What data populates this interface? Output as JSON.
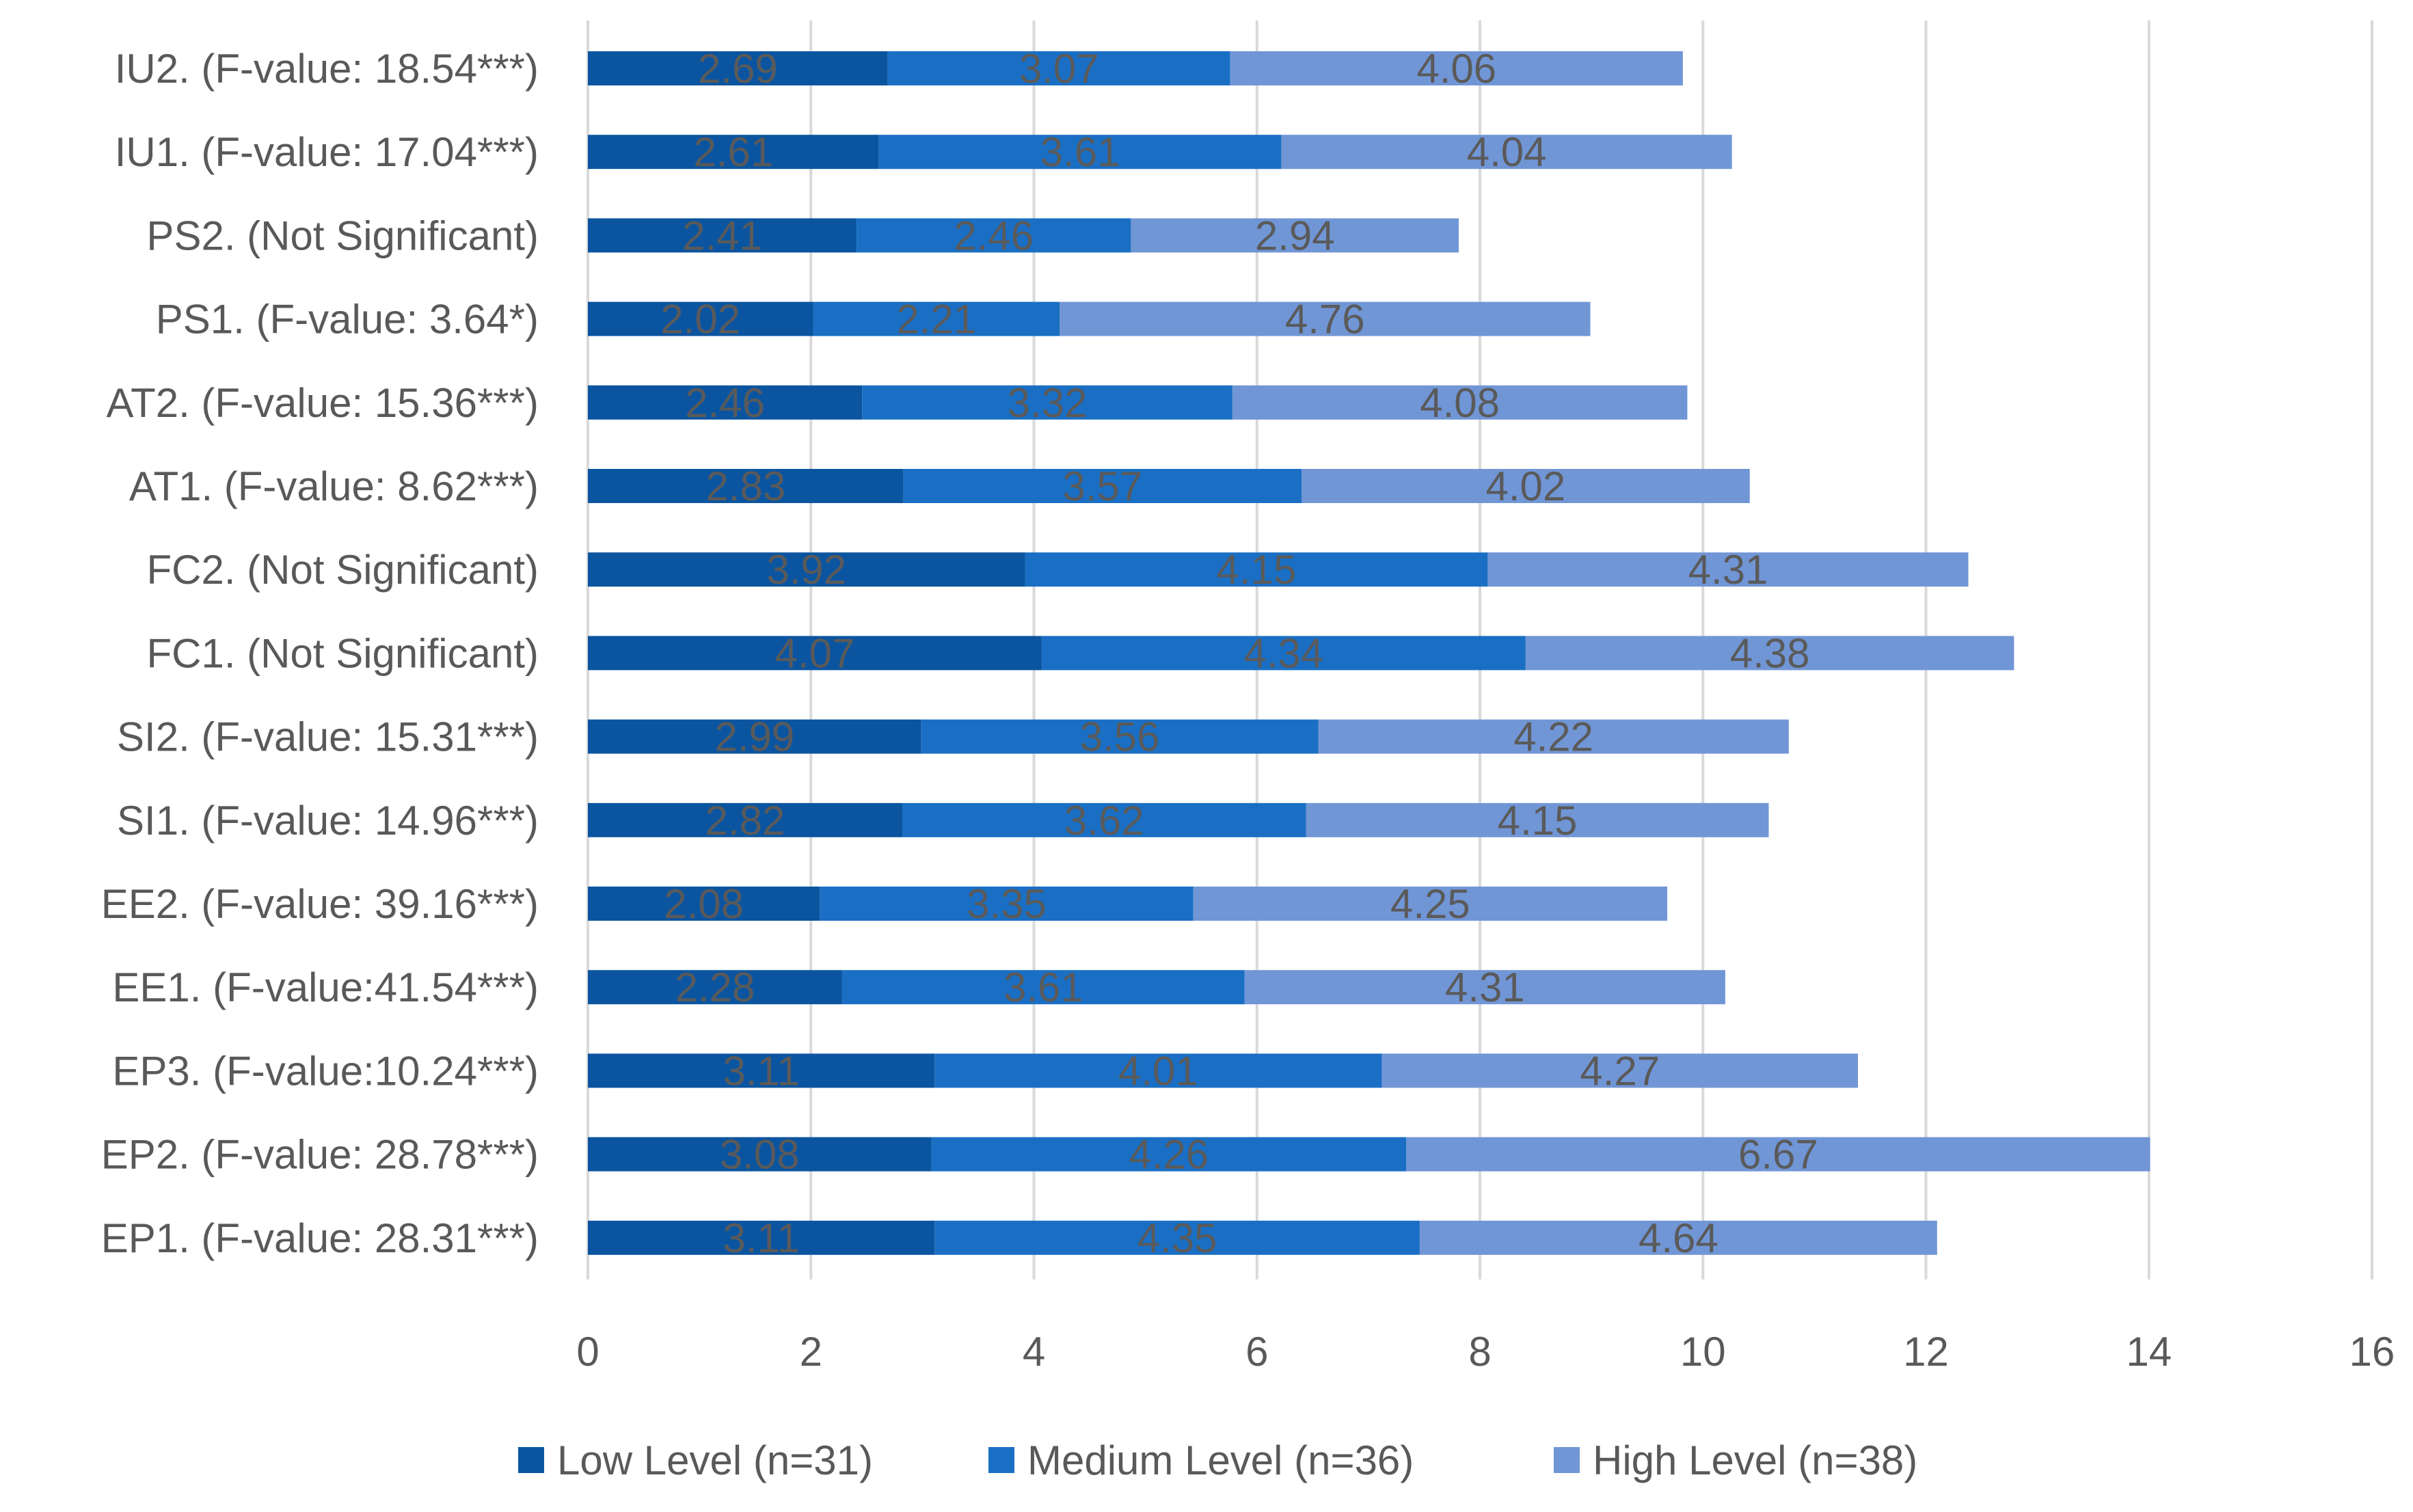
{
  "chart_data": {
    "type": "bar",
    "orientation": "horizontal",
    "stacked": true,
    "title": "",
    "xlabel": "",
    "ylabel": "",
    "xlim": [
      0,
      16
    ],
    "x_ticks": [
      0,
      2,
      4,
      6,
      8,
      10,
      12,
      14,
      16
    ],
    "x_tick_labels": [
      "0",
      "2",
      "4",
      "6",
      "8",
      "10",
      "12",
      "14",
      "16"
    ],
    "grid": "vertical",
    "legend_position": "bottom",
    "categories": [
      "IU2. (F-value: 18.54***)",
      "IU1. (F-value: 17.04***)",
      "PS2. (Not Significant)",
      "PS1. (F-value: 3.64*)",
      "AT2. (F-value: 15.36***)",
      "AT1. (F-value: 8.62***)",
      "FC2. (Not Significant)",
      "FC1. (Not Significant)",
      "SI2. (F-value: 15.31***)",
      "SI1. (F-value: 14.96***)",
      "EE2. (F-value: 39.16***)",
      "EE1. (F-value:41.54***)",
      "EP3. (F-value:10.24***)",
      "EP2. (F-value: 28.78***)",
      "EP1. (F-value: 28.31***)"
    ],
    "series": [
      {
        "name": "Low Level (n=31)",
        "color": "#0b55a0",
        "values": [
          2.69,
          2.61,
          2.41,
          2.02,
          2.46,
          2.83,
          3.92,
          4.07,
          2.99,
          2.82,
          2.08,
          2.28,
          3.11,
          3.08,
          3.11
        ],
        "labels": [
          "2.69",
          "2.61",
          "2.41",
          "2.02",
          "2.46",
          "2.83",
          "3.92",
          "4.07",
          "2.99",
          "2.82",
          "2.08",
          "2.28",
          "3.11",
          "3.08",
          "3.11"
        ]
      },
      {
        "name": "Medium Level (n=36)",
        "color": "#1a6fc4",
        "values": [
          3.07,
          3.61,
          2.46,
          2.21,
          3.32,
          3.57,
          4.15,
          4.34,
          3.56,
          3.62,
          3.35,
          3.61,
          4.01,
          4.26,
          4.35
        ],
        "labels": [
          "3.07",
          "3.61",
          "2.46",
          "2.21",
          "3.32",
          "3.57",
          "4.15",
          "4.34",
          "3.56",
          "3.62",
          "3.35",
          "3.61",
          "4.01",
          "4.26",
          "4.35"
        ]
      },
      {
        "name": "High Level (n=38)",
        "color": "#7196d6",
        "values": [
          4.06,
          4.04,
          2.94,
          4.76,
          4.08,
          4.02,
          4.31,
          4.38,
          4.22,
          4.15,
          4.25,
          4.31,
          4.27,
          6.67,
          4.64
        ],
        "labels": [
          "4.06",
          "4.04",
          "2.94",
          "4.76",
          "4.08",
          "4.02",
          "4.31",
          "4.38",
          "4.22",
          "4.15",
          "4.25",
          "4.31",
          "4.27",
          "6.67",
          "4.64"
        ]
      }
    ],
    "gridline_color": "#d9d9d9",
    "axis_color": "#d9d9d9"
  }
}
